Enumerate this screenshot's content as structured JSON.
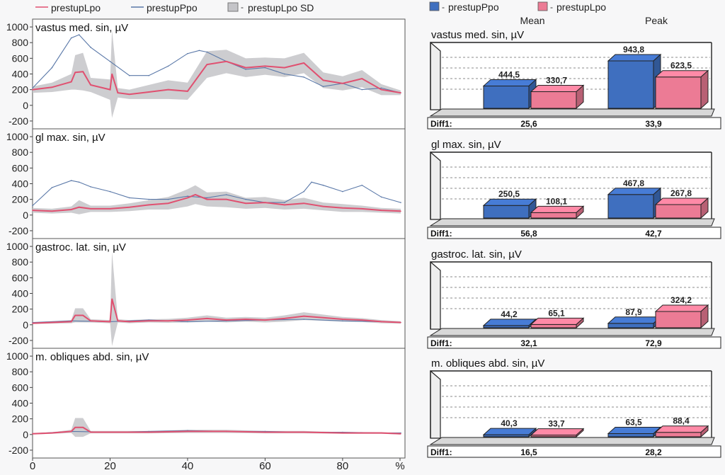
{
  "left_legend": {
    "items": [
      {
        "label": "prestupLpo",
        "color": "#e05070",
        "kind": "line"
      },
      {
        "label": "prestupPpo",
        "color": "#5a78a8",
        "kind": "line"
      },
      {
        "label": "prestupLpo SD",
        "color": "#c4c4c8",
        "kind": "band"
      }
    ]
  },
  "right_legend": {
    "items": [
      {
        "label": "prestupPpo",
        "color": "#3f6fbf"
      },
      {
        "label": "prestupLpo",
        "color": "#ec7b95"
      }
    ]
  },
  "col_headers": [
    "Mean",
    "Peak"
  ],
  "diff_label": "Diff1:",
  "chart_data": [
    {
      "type": "line",
      "title": "vastus med. sin, µV",
      "x_range": [
        0,
        95
      ],
      "xticks": [
        "0",
        "20",
        "40",
        "60",
        "80",
        "%"
      ],
      "ylim": [
        -300,
        1100
      ],
      "yticks": [
        -200,
        0,
        200,
        400,
        600,
        800,
        1000
      ],
      "series": [
        {
          "name": "prestupLpo",
          "color": "#e05070",
          "x": [
            0,
            5,
            10,
            11,
            13,
            15,
            20,
            20.5,
            22,
            25,
            30,
            35,
            40,
            45,
            50,
            55,
            60,
            65,
            70,
            75,
            80,
            85,
            90,
            95
          ],
          "y": [
            200,
            230,
            300,
            420,
            430,
            260,
            200,
            400,
            160,
            140,
            170,
            200,
            180,
            520,
            560,
            480,
            500,
            480,
            540,
            320,
            280,
            340,
            200,
            160
          ]
        },
        {
          "name": "prestupPpo",
          "color": "#5a78a8",
          "x": [
            0,
            5,
            10,
            12,
            15,
            20,
            25,
            30,
            35,
            40,
            43,
            45,
            50,
            55,
            60,
            65,
            70,
            75,
            80,
            85,
            90,
            95
          ],
          "y": [
            220,
            480,
            860,
            900,
            740,
            560,
            380,
            380,
            500,
            660,
            700,
            680,
            560,
            460,
            480,
            400,
            360,
            240,
            280,
            200,
            220,
            160
          ]
        },
        {
          "name": "prestupLpo SD",
          "color": "#c4c4c8",
          "x": [
            0,
            5,
            10,
            11,
            13,
            15,
            20,
            20.5,
            22,
            25,
            30,
            35,
            40,
            45,
            50,
            55,
            60,
            65,
            70,
            75,
            80,
            85,
            90,
            95
          ],
          "y": [
            200,
            230,
            300,
            420,
            430,
            260,
            200,
            400,
            160,
            140,
            170,
            200,
            180,
            520,
            560,
            480,
            500,
            480,
            540,
            320,
            280,
            340,
            200,
            160
          ],
          "sd": [
            40,
            60,
            100,
            220,
            240,
            90,
            130,
            560,
            60,
            60,
            90,
            120,
            110,
            170,
            150,
            120,
            110,
            120,
            130,
            100,
            90,
            110,
            70,
            30
          ]
        }
      ]
    },
    {
      "type": "line",
      "title": "gl max. sin, µV",
      "x_range": [
        0,
        95
      ],
      "ylim": [
        -300,
        1100
      ],
      "yticks": [
        -200,
        0,
        200,
        400,
        600,
        800,
        1000
      ],
      "series": [
        {
          "name": "prestupLpo",
          "color": "#e05070",
          "x": [
            0,
            5,
            10,
            12,
            15,
            20,
            25,
            30,
            35,
            40,
            42,
            45,
            50,
            55,
            60,
            65,
            70,
            75,
            80,
            85,
            90,
            95
          ],
          "y": [
            60,
            50,
            70,
            100,
            80,
            80,
            100,
            130,
            150,
            220,
            260,
            200,
            200,
            150,
            160,
            130,
            150,
            110,
            90,
            80,
            60,
            50
          ]
        },
        {
          "name": "prestupPpo",
          "color": "#5a78a8",
          "x": [
            0,
            5,
            10,
            12,
            15,
            20,
            25,
            30,
            35,
            40,
            45,
            50,
            55,
            60,
            65,
            70,
            72,
            75,
            80,
            85,
            90,
            95
          ],
          "y": [
            120,
            350,
            440,
            420,
            360,
            300,
            220,
            200,
            200,
            240,
            220,
            260,
            200,
            160,
            160,
            300,
            420,
            380,
            300,
            380,
            230,
            160
          ]
        },
        {
          "name": "prestupLpo SD",
          "color": "#c4c4c8",
          "x": [
            0,
            5,
            10,
            12,
            15,
            20,
            25,
            30,
            35,
            40,
            42,
            45,
            50,
            55,
            60,
            65,
            70,
            75,
            80,
            85,
            90,
            95
          ],
          "y": [
            60,
            50,
            70,
            100,
            80,
            80,
            100,
            130,
            150,
            220,
            260,
            200,
            200,
            150,
            160,
            130,
            150,
            110,
            90,
            80,
            60,
            50
          ],
          "sd": [
            30,
            30,
            40,
            90,
            40,
            40,
            50,
            60,
            80,
            110,
            120,
            90,
            100,
            70,
            70,
            60,
            70,
            50,
            50,
            40,
            30,
            30
          ]
        }
      ]
    },
    {
      "type": "line",
      "title": "gastroc. lat. sin, µV",
      "x_range": [
        0,
        95
      ],
      "ylim": [
        -300,
        1100
      ],
      "yticks": [
        -200,
        0,
        200,
        400,
        600,
        800,
        1000
      ],
      "series": [
        {
          "name": "prestupLpo",
          "color": "#e05070",
          "x": [
            0,
            5,
            10,
            11,
            13,
            15,
            20,
            20.5,
            22,
            25,
            30,
            35,
            40,
            45,
            50,
            55,
            60,
            65,
            70,
            75,
            80,
            85,
            90,
            95
          ],
          "y": [
            20,
            30,
            40,
            120,
            120,
            50,
            40,
            330,
            50,
            40,
            50,
            50,
            60,
            80,
            60,
            70,
            60,
            80,
            110,
            90,
            70,
            60,
            40,
            30
          ]
        },
        {
          "name": "prestupPpo",
          "color": "#5a78a8",
          "x": [
            0,
            10,
            20,
            30,
            40,
            50,
            60,
            70,
            80,
            90,
            95
          ],
          "y": [
            30,
            50,
            40,
            60,
            40,
            50,
            60,
            70,
            50,
            40,
            30
          ]
        },
        {
          "name": "prestupLpo SD",
          "color": "#c4c4c8",
          "x": [
            0,
            5,
            10,
            11,
            13,
            15,
            20,
            20.5,
            22,
            25,
            30,
            35,
            40,
            45,
            50,
            55,
            60,
            65,
            70,
            75,
            80,
            85,
            90,
            95
          ],
          "y": [
            20,
            30,
            40,
            120,
            120,
            50,
            40,
            330,
            50,
            40,
            50,
            50,
            60,
            80,
            60,
            70,
            60,
            80,
            110,
            90,
            70,
            60,
            40,
            30
          ],
          "sd": [
            10,
            15,
            20,
            90,
            90,
            20,
            20,
            600,
            20,
            20,
            20,
            25,
            30,
            40,
            30,
            30,
            30,
            40,
            50,
            40,
            30,
            25,
            20,
            15
          ]
        }
      ]
    },
    {
      "type": "line",
      "title": "m. obliques abd. sin, µV",
      "x_range": [
        0,
        95
      ],
      "ylim": [
        -300,
        1100
      ],
      "yticks": [
        -200,
        0,
        200,
        400,
        600,
        800,
        1000
      ],
      "series": [
        {
          "name": "prestupLpo",
          "color": "#e05070",
          "x": [
            0,
            5,
            10,
            11,
            13,
            15,
            20,
            30,
            40,
            50,
            60,
            70,
            80,
            90,
            95
          ],
          "y": [
            10,
            20,
            40,
            90,
            90,
            30,
            30,
            30,
            40,
            40,
            30,
            30,
            20,
            20,
            10
          ]
        },
        {
          "name": "prestupPpo",
          "color": "#5a78a8",
          "x": [
            0,
            10,
            20,
            30,
            40,
            50,
            60,
            70,
            80,
            90,
            95
          ],
          "y": [
            10,
            40,
            30,
            40,
            50,
            40,
            40,
            30,
            30,
            20,
            20
          ]
        },
        {
          "name": "prestupLpo SD",
          "color": "#c4c4c8",
          "x": [
            0,
            5,
            10,
            11,
            13,
            15,
            20,
            30,
            40,
            50,
            60,
            70,
            80,
            90,
            95
          ],
          "y": [
            10,
            20,
            40,
            90,
            90,
            30,
            30,
            30,
            40,
            40,
            30,
            30,
            20,
            20,
            10
          ],
          "sd": [
            10,
            10,
            20,
            120,
            120,
            15,
            15,
            15,
            20,
            20,
            15,
            15,
            10,
            10,
            10
          ]
        }
      ]
    },
    {
      "type": "bar",
      "title": "vastus med. sin, µV",
      "categories": [
        "Mean",
        "Peak"
      ],
      "series": [
        {
          "name": "prestupPpo",
          "values": [
            444.5,
            943.8
          ],
          "labels": [
            "444,5",
            "943,8"
          ]
        },
        {
          "name": "prestupLpo",
          "values": [
            330.7,
            623.5
          ],
          "labels": [
            "330,7",
            "623,5"
          ]
        }
      ],
      "diff": [
        "25,6",
        "33,9"
      ],
      "ylim": [
        0,
        1000
      ],
      "grid": true
    },
    {
      "type": "bar",
      "title": "gl max. sin, µV",
      "categories": [
        "Mean",
        "Peak"
      ],
      "series": [
        {
          "name": "prestupPpo",
          "values": [
            250.5,
            467.8
          ],
          "labels": [
            "250,5",
            "467,8"
          ]
        },
        {
          "name": "prestupLpo",
          "values": [
            108.1,
            267.8
          ],
          "labels": [
            "108,1",
            "267,8"
          ]
        }
      ],
      "diff": [
        "56,8",
        "42,7"
      ],
      "ylim": [
        0,
        1000
      ],
      "grid": true
    },
    {
      "type": "bar",
      "title": "gastroc. lat. sin, µV",
      "categories": [
        "Mean",
        "Peak"
      ],
      "series": [
        {
          "name": "prestupPpo",
          "values": [
            44.2,
            87.9
          ],
          "labels": [
            "44,2",
            "87,9"
          ]
        },
        {
          "name": "prestupLpo",
          "values": [
            65.1,
            324.2
          ],
          "labels": [
            "65,1",
            "324,2"
          ]
        }
      ],
      "diff": [
        "32,1",
        "72,9"
      ],
      "ylim": [
        0,
        1000
      ],
      "grid": true
    },
    {
      "type": "bar",
      "title": "m. obliques abd. sin, µV",
      "categories": [
        "Mean",
        "Peak"
      ],
      "series": [
        {
          "name": "prestupPpo",
          "values": [
            40.3,
            63.5
          ],
          "labels": [
            "40,3",
            "63,5"
          ]
        },
        {
          "name": "prestupLpo",
          "values": [
            33.7,
            88.4
          ],
          "labels": [
            "33,7",
            "88,4"
          ]
        }
      ],
      "diff": [
        "16,5",
        "28,2"
      ],
      "ylim": [
        0,
        1000
      ],
      "grid": true
    }
  ]
}
